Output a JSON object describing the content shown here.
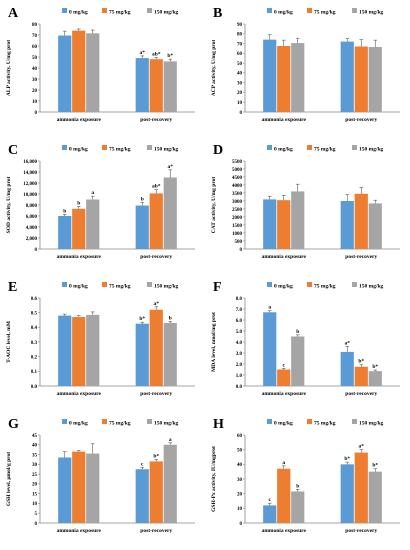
{
  "legend_labels": [
    "0 mg/kg",
    "75 mg/kg",
    "150 mg/kg"
  ],
  "colors": {
    "series": [
      "#5b9bd5",
      "#ed7d31",
      "#a5a5a5"
    ],
    "axis": "#888888",
    "text": "#000000"
  },
  "chart_data": [
    {
      "type": "bar",
      "panel_label": "A",
      "ylabel": "ALP activity, U/mg prot",
      "categories": [
        "ammonia exposure",
        "post-recovery"
      ],
      "ylim": [
        0,
        80
      ],
      "yticks": [
        0,
        10,
        20,
        30,
        40,
        50,
        60,
        70,
        80
      ],
      "legend": "top-center",
      "grid": false,
      "series": [
        {
          "name": "0 mg/kg",
          "values": [
            69.5,
            49
          ],
          "errors": [
            4,
            2
          ],
          "letters": [
            "",
            "a*"
          ]
        },
        {
          "name": "75 mg/kg",
          "values": [
            74,
            48
          ],
          "errors": [
            1.5,
            1.5
          ],
          "letters": [
            "",
            "ab*"
          ]
        },
        {
          "name": "150 mg/kg",
          "values": [
            71.5,
            46
          ],
          "errors": [
            3,
            2
          ],
          "letters": [
            "",
            "b*"
          ]
        }
      ]
    },
    {
      "type": "bar",
      "panel_label": "B",
      "ylabel": "ACP activity, U/mg prot",
      "categories": [
        "ammonia exposure",
        "post-recovery"
      ],
      "ylim": [
        0,
        90
      ],
      "yticks": [
        0,
        10,
        20,
        30,
        40,
        50,
        60,
        70,
        80,
        90
      ],
      "legend": "top-center",
      "grid": false,
      "series": [
        {
          "name": "0 mg/kg",
          "values": [
            74,
            72
          ],
          "errors": [
            5,
            3
          ],
          "letters": [
            "",
            ""
          ]
        },
        {
          "name": "75 mg/kg",
          "values": [
            67.5,
            67
          ],
          "errors": [
            6,
            7
          ],
          "letters": [
            "",
            ""
          ]
        },
        {
          "name": "150 mg/kg",
          "values": [
            70.5,
            66.5
          ],
          "errors": [
            5,
            7
          ],
          "letters": [
            "",
            ""
          ]
        }
      ]
    },
    {
      "type": "bar",
      "panel_label": "C",
      "ylabel": "SOD activity, U/mg prot",
      "categories": [
        "ammonia exposure",
        "post-recovery"
      ],
      "ylim": [
        0,
        16000
      ],
      "yticks": [
        0,
        2000,
        4000,
        6000,
        8000,
        10000,
        12000,
        14000,
        16000
      ],
      "ytick_labels": [
        "0",
        "2,000",
        "4,000",
        "6,000",
        "8,000",
        "10,000",
        "12,000",
        "14,000",
        "16,000"
      ],
      "legend": "top-center",
      "grid": false,
      "series": [
        {
          "name": "0 mg/kg",
          "values": [
            6000,
            7900
          ],
          "errors": [
            300,
            600
          ],
          "letters": [
            "b",
            "b"
          ]
        },
        {
          "name": "75 mg/kg",
          "values": [
            7300,
            10100
          ],
          "errors": [
            400,
            700
          ],
          "letters": [
            "b",
            "ab*"
          ]
        },
        {
          "name": "150 mg/kg",
          "values": [
            9000,
            13000
          ],
          "errors": [
            600,
            1400
          ],
          "letters": [
            "a",
            "a*"
          ]
        }
      ]
    },
    {
      "type": "bar",
      "panel_label": "D",
      "ylabel": "CAT activity, U/mg prot",
      "categories": [
        "ammonia exposure",
        "post-recovery"
      ],
      "ylim": [
        0,
        5500
      ],
      "yticks": [
        0,
        500,
        1000,
        1500,
        2000,
        2500,
        3000,
        3500,
        4000,
        4500,
        5000,
        5500
      ],
      "legend": "top-center",
      "grid": false,
      "series": [
        {
          "name": "0 mg/kg",
          "values": [
            3100,
            3000
          ],
          "errors": [
            200,
            400
          ],
          "letters": [
            "",
            ""
          ]
        },
        {
          "name": "75 mg/kg",
          "values": [
            3050,
            3450
          ],
          "errors": [
            300,
            400
          ],
          "letters": [
            "",
            ""
          ]
        },
        {
          "name": "150 mg/kg",
          "values": [
            3600,
            2850
          ],
          "errors": [
            450,
            200
          ],
          "letters": [
            "",
            ""
          ]
        }
      ]
    },
    {
      "type": "bar",
      "panel_label": "E",
      "ylabel": "T-AOC level, mM",
      "categories": [
        "ammonia exposure",
        "post-recovery"
      ],
      "ylim": [
        0,
        0.6
      ],
      "yticks": [
        0,
        0.1,
        0.2,
        0.3,
        0.4,
        0.5,
        0.6
      ],
      "ytick_labels": [
        "0.0",
        "0.1",
        "0.2",
        "0.3",
        "0.4",
        "0.5",
        "0.6"
      ],
      "legend": "top-center",
      "grid": false,
      "series": [
        {
          "name": "0 mg/kg",
          "values": [
            0.48,
            0.425
          ],
          "errors": [
            0.01,
            0.01
          ],
          "letters": [
            "",
            "b*"
          ]
        },
        {
          "name": "75 mg/kg",
          "values": [
            0.47,
            0.52
          ],
          "errors": [
            0.01,
            0.02
          ],
          "letters": [
            "",
            "a*"
          ]
        },
        {
          "name": "150 mg/kg",
          "values": [
            0.485,
            0.43
          ],
          "errors": [
            0.02,
            0.01
          ],
          "letters": [
            "",
            "b"
          ]
        }
      ]
    },
    {
      "type": "bar",
      "panel_label": "F",
      "ylabel": "MDA level, nmol/mg prot",
      "categories": [
        "ammonia exposure",
        "post-recovery"
      ],
      "ylim": [
        0,
        8
      ],
      "yticks": [
        0,
        1,
        2,
        3,
        4,
        5,
        6,
        7,
        8
      ],
      "ytick_labels": [
        "0.0",
        "1.0",
        "2.0",
        "3.0",
        "4.0",
        "5.0",
        "6.0",
        "7.0",
        "8.0"
      ],
      "legend": "top-center",
      "grid": false,
      "series": [
        {
          "name": "0 mg/kg",
          "values": [
            6.7,
            3.1
          ],
          "errors": [
            0.15,
            0.5
          ],
          "letters": [
            "a",
            "a*"
          ]
        },
        {
          "name": "75 mg/kg",
          "values": [
            1.5,
            1.75
          ],
          "errors": [
            0.1,
            0.2
          ],
          "letters": [
            "c",
            "b*"
          ]
        },
        {
          "name": "150 mg/kg",
          "values": [
            4.5,
            1.35
          ],
          "errors": [
            0.15,
            0.1
          ],
          "letters": [
            "b",
            "b*"
          ]
        }
      ]
    },
    {
      "type": "bar",
      "panel_label": "G",
      "ylabel": "GSH level, µmol/g prot",
      "categories": [
        "ammonia exposure",
        "post-recovery"
      ],
      "ylim": [
        0,
        45
      ],
      "yticks": [
        0,
        5,
        10,
        15,
        20,
        25,
        30,
        35,
        40,
        45
      ],
      "legend": "top-center",
      "grid": false,
      "series": [
        {
          "name": "0 mg/kg",
          "values": [
            33.5,
            27.5
          ],
          "errors": [
            3,
            1
          ],
          "letters": [
            "",
            "c"
          ]
        },
        {
          "name": "75 mg/kg",
          "values": [
            36.5,
            31.5
          ],
          "errors": [
            0.5,
            1
          ],
          "letters": [
            "",
            "b*"
          ]
        },
        {
          "name": "150 mg/kg",
          "values": [
            35.5,
            40
          ],
          "errors": [
            5,
            1
          ],
          "letters": [
            "",
            "a"
          ]
        }
      ]
    },
    {
      "type": "bar",
      "panel_label": "H",
      "ylabel": "GSH-Px activity, IU/mgprot",
      "categories": [
        "ammonia exposure",
        "post-recovery"
      ],
      "ylim": [
        0,
        60
      ],
      "yticks": [
        0,
        10,
        20,
        30,
        40,
        50,
        60
      ],
      "legend": "top-center",
      "grid": false,
      "series": [
        {
          "name": "0 mg/kg",
          "values": [
            12,
            40
          ],
          "errors": [
            1.5,
            1.5
          ],
          "letters": [
            "c",
            "b*"
          ]
        },
        {
          "name": "75 mg/kg",
          "values": [
            37,
            48
          ],
          "errors": [
            2,
            2
          ],
          "letters": [
            "a",
            "a*"
          ]
        },
        {
          "name": "150 mg/kg",
          "values": [
            21.5,
            35
          ],
          "errors": [
            1.5,
            2
          ],
          "letters": [
            "b",
            "b*"
          ]
        }
      ]
    }
  ]
}
